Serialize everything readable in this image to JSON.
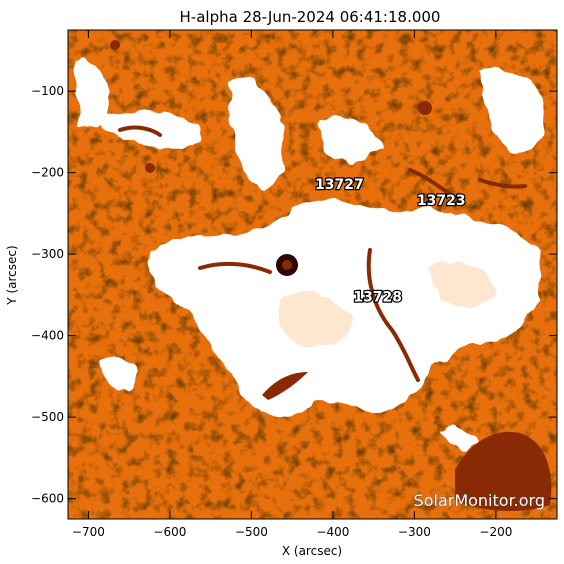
{
  "title": "H-alpha 28-Jun-2024 06:41:18.000",
  "x_axis": {
    "label": "X (arcsec)",
    "range": [
      -725,
      -125
    ],
    "ticks": [
      -700,
      -600,
      -500,
      -400,
      -300,
      -200
    ]
  },
  "y_axis": {
    "label": "Y (arcsec)",
    "range": [
      -625,
      -25
    ],
    "ticks": [
      -100,
      -200,
      -300,
      -400,
      -500,
      -600
    ]
  },
  "regions": [
    {
      "number": "13727",
      "x": -392,
      "y": -220
    },
    {
      "number": "13723",
      "x": -267,
      "y": -240
    },
    {
      "number": "13728",
      "x": -345,
      "y": -358
    }
  ],
  "sunspot": {
    "x": -453,
    "y": -317
  },
  "watermark": "SolarMonitor.org",
  "colors": {
    "background": "#e8700c",
    "plage": "#ffffff",
    "filament": "#8a2a04",
    "dark_spot": "#2a0800"
  }
}
